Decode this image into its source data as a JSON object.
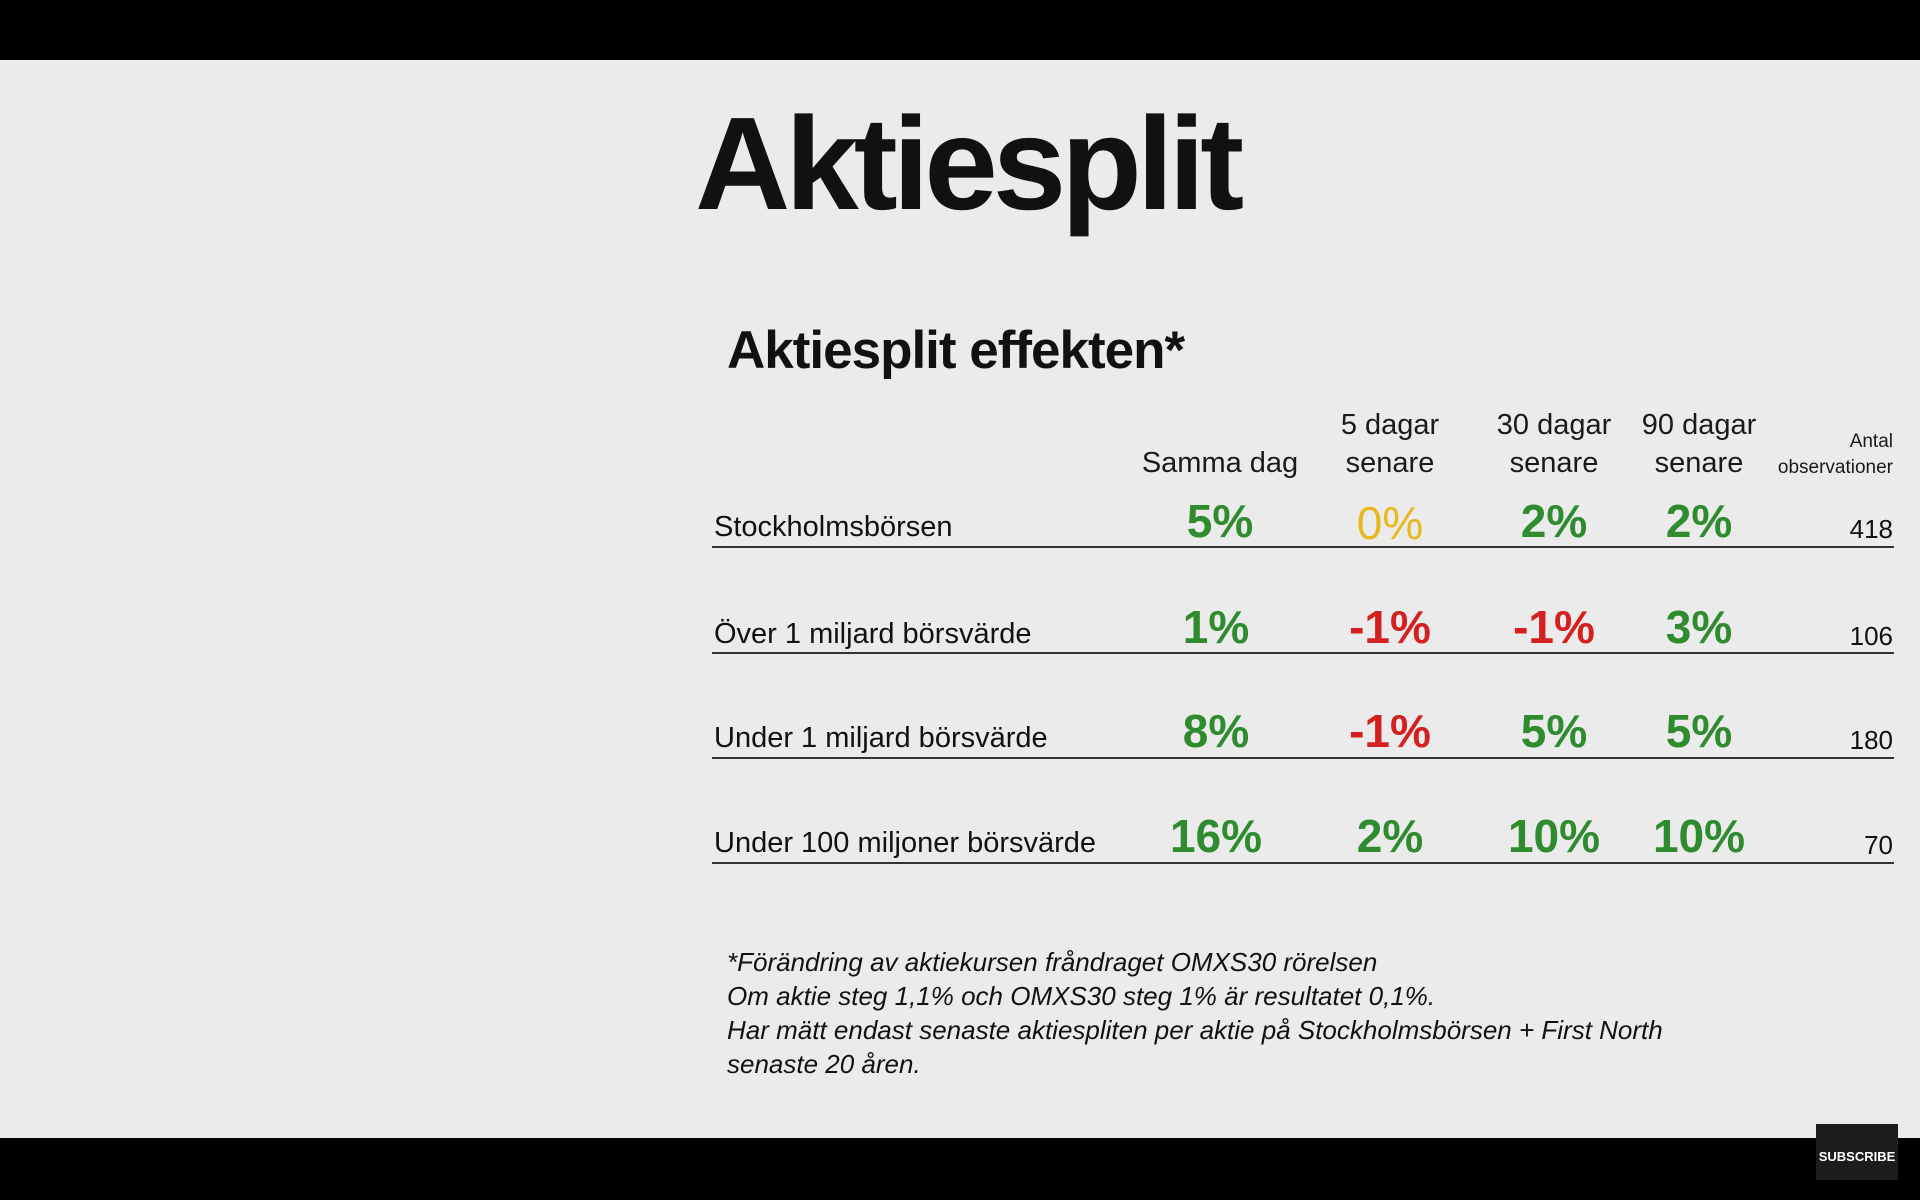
{
  "slide": {
    "title": "Aktiesplit",
    "subtitle": "Aktiesplit effekten*"
  },
  "table": {
    "headers": {
      "same_day": "Samma dag",
      "d5_line1": "5 dagar",
      "d5_line2": "senare",
      "d30_line1": "30 dagar",
      "d30_line2": "senare",
      "d90_line1": "90 dagar",
      "d90_line2": "senare",
      "obs_line1": "Antal",
      "obs_line2": "observationer"
    },
    "rows": [
      {
        "label": "Stockholmsbörsen",
        "same_day": "5%",
        "d5": "0%",
        "d30": "2%",
        "d90": "2%",
        "obs": "418"
      },
      {
        "label": "Över 1 miljard börsvärde",
        "same_day": "1%",
        "d5": "-1%",
        "d30": "-1%",
        "d90": "3%",
        "obs": "106"
      },
      {
        "label": "Under 1 miljard börsvärde",
        "same_day": "8%",
        "d5": "-1%",
        "d30": "5%",
        "d90": "5%",
        "obs": "180"
      },
      {
        "label": "Under 100 miljoner börsvärde",
        "same_day": "16%",
        "d5": "2%",
        "d30": "10%",
        "d90": "10%",
        "obs": "70"
      }
    ]
  },
  "footnote": {
    "line1": "*Förändring av aktiekursen fråndraget OMXS30 rörelsen",
    "line2": "Om aktie steg 1,1% och OMXS30 steg 1% är resultatet 0,1%.",
    "line3": "Har mätt endast senaste aktiespliten per aktie på Stockholmsbörsen + First North",
    "line4": "senaste 20 åren."
  },
  "player": {
    "subscribe_label": "SUBSCRIBE"
  },
  "colors": {
    "positive": "#2e8b2e",
    "negative": "#d42020",
    "neutral": "#e8b820"
  }
}
